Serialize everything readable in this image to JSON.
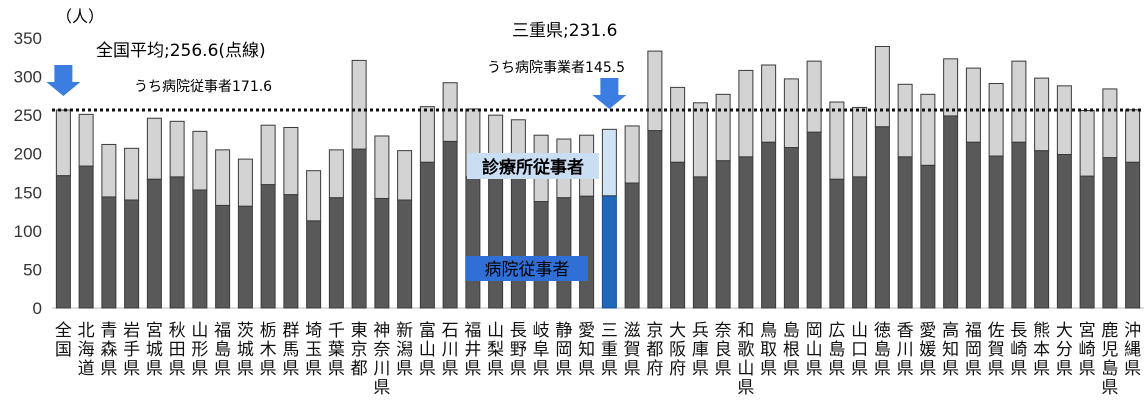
{
  "chart_data": {
    "type": "bar",
    "stacked": true,
    "y_unit_label": "（人）",
    "ylim": [
      0,
      350
    ],
    "y_ticks": [
      0,
      50,
      100,
      150,
      200,
      250,
      300,
      350
    ],
    "categories": [
      [
        "全",
        "国"
      ],
      [
        "北",
        "海",
        "道"
      ],
      [
        "青",
        "森",
        "県"
      ],
      [
        "岩",
        "手",
        "県"
      ],
      [
        "宮",
        "城",
        "県"
      ],
      [
        "秋",
        "田",
        "県"
      ],
      [
        "山",
        "形",
        "県"
      ],
      [
        "福",
        "島",
        "県"
      ],
      [
        "茨",
        "城",
        "県"
      ],
      [
        "栃",
        "木",
        "県"
      ],
      [
        "群",
        "馬",
        "県"
      ],
      [
        "埼",
        "玉",
        "県"
      ],
      [
        "千",
        "葉",
        "県"
      ],
      [
        "東",
        "京",
        "都"
      ],
      [
        "神",
        "奈",
        "川",
        "県"
      ],
      [
        "新",
        "潟",
        "県"
      ],
      [
        "富",
        "山",
        "県"
      ],
      [
        "石",
        "川",
        "県"
      ],
      [
        "福",
        "井",
        "県"
      ],
      [
        "山",
        "梨",
        "県"
      ],
      [
        "長",
        "野",
        "県"
      ],
      [
        "岐",
        "阜",
        "県"
      ],
      [
        "静",
        "岡",
        "県"
      ],
      [
        "愛",
        "知",
        "県"
      ],
      [
        "三",
        "重",
        "県"
      ],
      [
        "滋",
        "賀",
        "県"
      ],
      [
        "京",
        "都",
        "府"
      ],
      [
        "大",
        "阪",
        "府"
      ],
      [
        "兵",
        "庫",
        "県"
      ],
      [
        "奈",
        "良",
        "県"
      ],
      [
        "和",
        "歌",
        "山",
        "県"
      ],
      [
        "鳥",
        "取",
        "県"
      ],
      [
        "島",
        "根",
        "県"
      ],
      [
        "岡",
        "山",
        "県"
      ],
      [
        "広",
        "島",
        "県"
      ],
      [
        "山",
        "口",
        "県"
      ],
      [
        "徳",
        "島",
        "県"
      ],
      [
        "香",
        "川",
        "県"
      ],
      [
        "愛",
        "媛",
        "県"
      ],
      [
        "高",
        "知",
        "県"
      ],
      [
        "福",
        "岡",
        "県"
      ],
      [
        "佐",
        "賀",
        "県"
      ],
      [
        "長",
        "崎",
        "県"
      ],
      [
        "熊",
        "本",
        "県"
      ],
      [
        "大",
        "分",
        "県"
      ],
      [
        "宮",
        "崎",
        "県"
      ],
      [
        "鹿",
        "児",
        "島",
        "県"
      ],
      [
        "沖",
        "縄",
        "県"
      ]
    ],
    "series": [
      {
        "name": "病院従事者",
        "color": "#595959",
        "highlight_color": "#1f67b8",
        "values": [
          171.6,
          184,
          144,
          140,
          167,
          170,
          153,
          133,
          132,
          160,
          147,
          113,
          143,
          206,
          142,
          140,
          189,
          216,
          170,
          172,
          170,
          138,
          143,
          145,
          145.5,
          162,
          230,
          189,
          170,
          191,
          196,
          215,
          208,
          228,
          167,
          170,
          235,
          196,
          185,
          249,
          215,
          197,
          215,
          204,
          199,
          171,
          195,
          189
        ]
      },
      {
        "name": "診療所従事者",
        "color": "#d3d3d3",
        "highlight_color": "#cfe3f6",
        "values": [
          85,
          67,
          68,
          67,
          79,
          72,
          76,
          72,
          61,
          77,
          87,
          65,
          62,
          115,
          81,
          64,
          72,
          76,
          88,
          78,
          74,
          86,
          76,
          79,
          86.1,
          74,
          103,
          97,
          96,
          86,
          112,
          100,
          89,
          92,
          100,
          90,
          104,
          94,
          92,
          74,
          96,
          94,
          105,
          94,
          89,
          85,
          89,
          68
        ]
      }
    ],
    "highlight_index": 24,
    "reference_line": {
      "value": 256.6,
      "style": "dotted"
    },
    "annotations": {
      "national_avg": "全国平均;256.6(点線)",
      "national_hospital": "うち病院従事者171.6",
      "mie_total": "三重県;231.6",
      "mie_hospital": "うち病院事業者145.5"
    },
    "legend": {
      "clinic_label": "診療所従事者",
      "hospital_label": "病院従事者",
      "clinic_box_color": "#c9def3",
      "hospital_box_color": "#2f6fd6"
    },
    "arrow_color": "#3b7de0",
    "grid": false
  }
}
